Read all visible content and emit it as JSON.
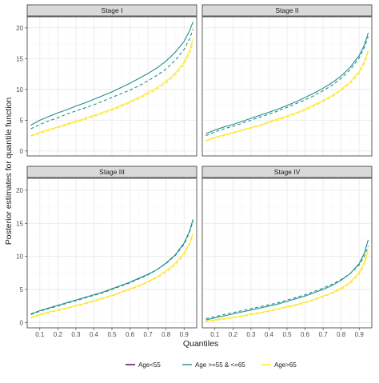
{
  "chart_data": {
    "type": "line",
    "xlabel": "Quantiles",
    "ylabel": "Posterior estimates for quantile function",
    "x_ticks": [
      0.1,
      0.2,
      0.3,
      0.4,
      0.5,
      0.6,
      0.7,
      0.8,
      0.9
    ],
    "y_ticks": [
      0,
      5,
      10,
      15,
      20
    ],
    "xlim": [
      0.03,
      0.97
    ],
    "ylim": [
      -0.8,
      21.8
    ],
    "grid": true,
    "line_styles": [
      "solid",
      "dashed"
    ],
    "legend": {
      "position": "bottom",
      "entries": [
        {
          "label": "Age<55",
          "color": "#440154"
        },
        {
          "label": "Age >=55 & <=65",
          "color": "#21908C"
        },
        {
          "label": "Age>65",
          "color": "#FDE725"
        }
      ]
    },
    "x": [
      0.05,
      0.1,
      0.15,
      0.2,
      0.25,
      0.3,
      0.35,
      0.4,
      0.45,
      0.5,
      0.55,
      0.6,
      0.65,
      0.7,
      0.75,
      0.8,
      0.85,
      0.9,
      0.93,
      0.95
    ],
    "panels": [
      {
        "title": "Stage I",
        "series": [
          {
            "name": "Age >=55 & <=65",
            "style": "solid",
            "color": "#21908C",
            "values": [
              4.2,
              5.0,
              5.6,
              6.2,
              6.7,
              7.3,
              7.8,
              8.4,
              9.0,
              9.6,
              10.3,
              11.0,
              11.8,
              12.6,
              13.5,
              14.6,
              16.0,
              17.8,
              19.5,
              21.0
            ]
          },
          {
            "name": "Age >=55 & <=65",
            "style": "dashed",
            "color": "#21908C",
            "values": [
              3.6,
              4.3,
              4.9,
              5.4,
              6.0,
              6.5,
              7.0,
              7.5,
              8.1,
              8.7,
              9.3,
              9.9,
              10.6,
              11.4,
              12.3,
              13.3,
              14.7,
              16.5,
              18.2,
              19.8
            ]
          },
          {
            "name": "Age>65",
            "style": "solid",
            "color": "#FDE725",
            "values": [
              2.5,
              3.0,
              3.5,
              3.9,
              4.4,
              4.8,
              5.3,
              5.8,
              6.3,
              6.8,
              7.4,
              8.0,
              8.7,
              9.5,
              10.3,
              11.3,
              12.6,
              14.4,
              16.3,
              18.2
            ]
          },
          {
            "name": "Age>65",
            "style": "dashed",
            "color": "#FDE725",
            "values": [
              2.4,
              2.9,
              3.3,
              3.8,
              4.2,
              4.7,
              5.1,
              5.6,
              6.1,
              6.6,
              7.2,
              7.8,
              8.5,
              9.2,
              10.0,
              11.0,
              12.3,
              14.0,
              15.8,
              17.6
            ]
          }
        ]
      },
      {
        "title": "Stage II",
        "series": [
          {
            "name": "Age >=55 & <=65",
            "style": "solid",
            "color": "#21908C",
            "values": [
              2.8,
              3.4,
              3.9,
              4.3,
              4.8,
              5.3,
              5.8,
              6.3,
              6.8,
              7.4,
              8.0,
              8.7,
              9.4,
              10.2,
              11.1,
              12.2,
              13.6,
              15.5,
              17.3,
              19.2
            ]
          },
          {
            "name": "Age >=55 & <=65",
            "style": "dashed",
            "color": "#21908C",
            "values": [
              2.5,
              3.1,
              3.6,
              4.0,
              4.5,
              5.0,
              5.5,
              6.0,
              6.5,
              7.1,
              7.7,
              8.3,
              9.0,
              9.8,
              10.7,
              11.8,
              13.2,
              15.1,
              16.9,
              18.6
            ]
          },
          {
            "name": "Age>65",
            "style": "solid",
            "color": "#FDE725",
            "values": [
              1.7,
              2.2,
              2.6,
              3.0,
              3.4,
              3.8,
              4.2,
              4.7,
              5.2,
              5.7,
              6.2,
              6.8,
              7.5,
              8.2,
              9.0,
              10.0,
              11.2,
              12.9,
              14.6,
              16.4
            ]
          },
          {
            "name": "Age>65",
            "style": "dashed",
            "color": "#FDE725",
            "values": [
              1.6,
              2.1,
              2.5,
              2.9,
              3.3,
              3.7,
              4.1,
              4.6,
              5.0,
              5.5,
              6.0,
              6.6,
              7.3,
              8.0,
              8.8,
              9.8,
              11.0,
              12.6,
              14.3,
              16.0
            ]
          }
        ]
      },
      {
        "title": "Stage III",
        "series": [
          {
            "name": "Age >=55 & <=65",
            "style": "solid",
            "color": "#21908C",
            "values": [
              1.3,
              1.8,
              2.2,
              2.6,
              3.0,
              3.4,
              3.8,
              4.2,
              4.6,
              5.1,
              5.6,
              6.1,
              6.7,
              7.3,
              8.0,
              9.0,
              10.2,
              12.0,
              13.8,
              15.6
            ]
          },
          {
            "name": "Age >=55 & <=65",
            "style": "dashed",
            "color": "#21908C",
            "values": [
              1.2,
              1.7,
              2.1,
              2.5,
              2.9,
              3.3,
              3.7,
              4.1,
              4.5,
              5.0,
              5.5,
              6.0,
              6.6,
              7.2,
              8.0,
              8.9,
              10.1,
              11.8,
              13.6,
              15.4
            ]
          },
          {
            "name": "Age>65",
            "style": "solid",
            "color": "#FDE725",
            "values": [
              0.8,
              1.2,
              1.6,
              1.9,
              2.2,
              2.6,
              2.9,
              3.3,
              3.7,
              4.1,
              4.6,
              5.1,
              5.6,
              6.2,
              6.9,
              7.8,
              8.9,
              10.5,
              12.0,
              13.5
            ]
          },
          {
            "name": "Age>65",
            "style": "dashed",
            "color": "#FDE725",
            "values": [
              0.7,
              1.1,
              1.5,
              1.8,
              2.1,
              2.5,
              2.8,
              3.2,
              3.6,
              4.0,
              4.5,
              5.0,
              5.5,
              6.1,
              6.8,
              7.6,
              8.7,
              10.2,
              11.8,
              13.2
            ]
          }
        ]
      },
      {
        "title": "Stage IV",
        "series": [
          {
            "name": "Age >=55 & <=65",
            "style": "solid",
            "color": "#21908C",
            "values": [
              0.4,
              0.7,
              1.0,
              1.3,
              1.6,
              1.9,
              2.2,
              2.5,
              2.8,
              3.2,
              3.6,
              4.0,
              4.5,
              5.0,
              5.6,
              6.4,
              7.4,
              8.9,
              10.6,
              12.5
            ]
          },
          {
            "name": "Age >=55 & <=65",
            "style": "dashed",
            "color": "#21908C",
            "values": [
              0.6,
              0.9,
              1.2,
              1.5,
              1.8,
              2.1,
              2.4,
              2.7,
              3.0,
              3.4,
              3.8,
              4.2,
              4.7,
              5.2,
              5.8,
              6.5,
              7.4,
              8.7,
              10.1,
              11.6
            ]
          },
          {
            "name": "Age>65",
            "style": "solid",
            "color": "#FDE725",
            "values": [
              0.2,
              0.4,
              0.6,
              0.8,
              1.0,
              1.3,
              1.5,
              1.8,
              2.1,
              2.4,
              2.7,
              3.1,
              3.5,
              4.0,
              4.5,
              5.2,
              6.1,
              7.6,
              9.2,
              11.0
            ]
          },
          {
            "name": "Age>65",
            "style": "dashed",
            "color": "#FDE725",
            "values": [
              0.1,
              0.3,
              0.5,
              0.7,
              0.9,
              1.2,
              1.4,
              1.7,
              2.0,
              2.3,
              2.6,
              3.0,
              3.4,
              3.9,
              4.4,
              5.0,
              5.9,
              7.3,
              8.8,
              10.5
            ]
          }
        ]
      }
    ]
  }
}
